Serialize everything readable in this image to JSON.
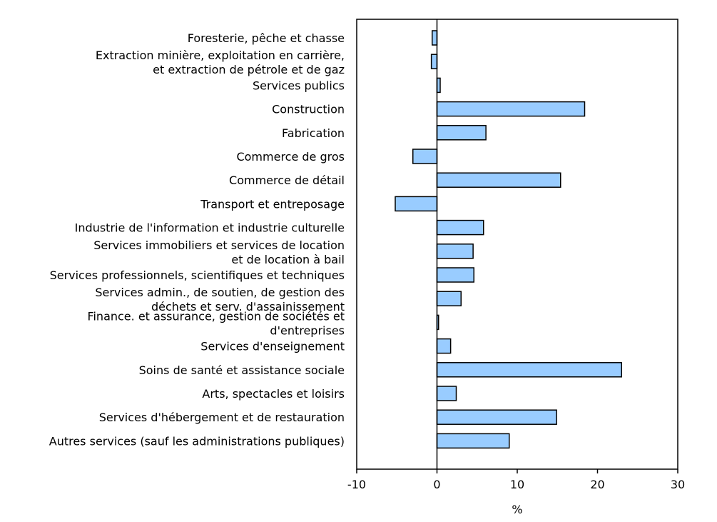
{
  "chart_data": {
    "type": "bar",
    "orientation": "horizontal",
    "categories": [
      [
        "Foresterie, pêche et chasse"
      ],
      [
        "Extraction minière, exploitation en carrière,",
        "et extraction de pétrole et de gaz"
      ],
      [
        "Services publics"
      ],
      [
        "Construction"
      ],
      [
        "Fabrication"
      ],
      [
        "Commerce de gros"
      ],
      [
        "Commerce de détail"
      ],
      [
        "Transport et entreposage"
      ],
      [
        "Industrie de l'information et industrie culturelle"
      ],
      [
        "Services immobiliers et services de location",
        "et de location à bail"
      ],
      [
        "Services professionnels, scientifiques et techniques"
      ],
      [
        "Services admin., de soutien, de gestion des",
        "déchets et serv. d'assainissement"
      ],
      [
        "Finance. et assurance, gestion de sociétés et",
        "d'entreprises"
      ],
      [
        "Services d'enseignement"
      ],
      [
        "Soins de santé et assistance sociale"
      ],
      [
        "Arts, spectacles et loisirs"
      ],
      [
        "Services d'hébergement et de restauration"
      ],
      [
        "Autres services (sauf les administrations publiques)"
      ]
    ],
    "values": [
      -0.6,
      -0.7,
      0.4,
      18.4,
      6.1,
      -3.0,
      15.4,
      -5.2,
      5.8,
      4.5,
      4.6,
      3.0,
      0.2,
      1.7,
      23.0,
      2.4,
      14.9,
      9.0
    ],
    "xlabel": "%",
    "xlim": [
      -10,
      30
    ],
    "xticks": [
      "-10",
      "0",
      "10",
      "20",
      "30"
    ],
    "bar_color": "#99ccff",
    "bar_stroke": "#000000"
  }
}
